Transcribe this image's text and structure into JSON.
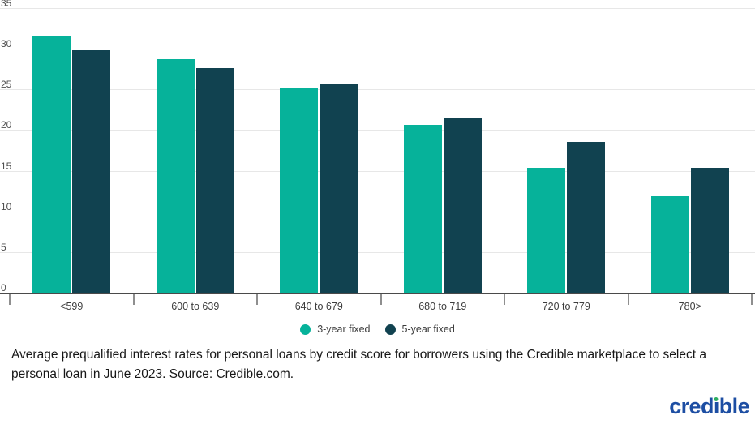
{
  "chart_data": {
    "type": "bar",
    "title": "",
    "categories": [
      "<599",
      "600 to 639",
      "640 to 679",
      "680 to 719",
      "720 to 779",
      "780>"
    ],
    "series": [
      {
        "name": "3-year fixed",
        "color": "#06B29A",
        "values": [
          31.6,
          28.7,
          25.1,
          20.6,
          15.4,
          11.9
        ]
      },
      {
        "name": "5-year fixed",
        "color": "#114250",
        "values": [
          29.8,
          27.6,
          25.6,
          21.5,
          18.5,
          15.4
        ]
      }
    ],
    "xlabel": "",
    "ylabel": "",
    "ylim": [
      0,
      35
    ],
    "ytick_interval": 5,
    "ytick_labels": [
      "0",
      "5",
      "10",
      "15",
      "20",
      "25",
      "30",
      "35"
    ],
    "grid": true,
    "legend_position": "bottom"
  },
  "caption": {
    "text_before": "Average prequalified interest rates for personal loans by credit score for borrowers using the Credible marketplace to select a personal loan in June 2023. Source: ",
    "link_text": "Credible.com",
    "text_after": "."
  },
  "logo": {
    "text": "credible",
    "part1": "cred",
    "part2": "ı",
    "part3": "ble",
    "color": "#1D4EA3",
    "dot_color": "#2FAE62"
  },
  "colors": {
    "series_3yr": "#06B29A",
    "series_5yr": "#114250",
    "gridline": "#e7e7e7",
    "axis_line": "#4a4a4a",
    "axis_text": "#4e4e4e",
    "background": "#ffffff"
  }
}
